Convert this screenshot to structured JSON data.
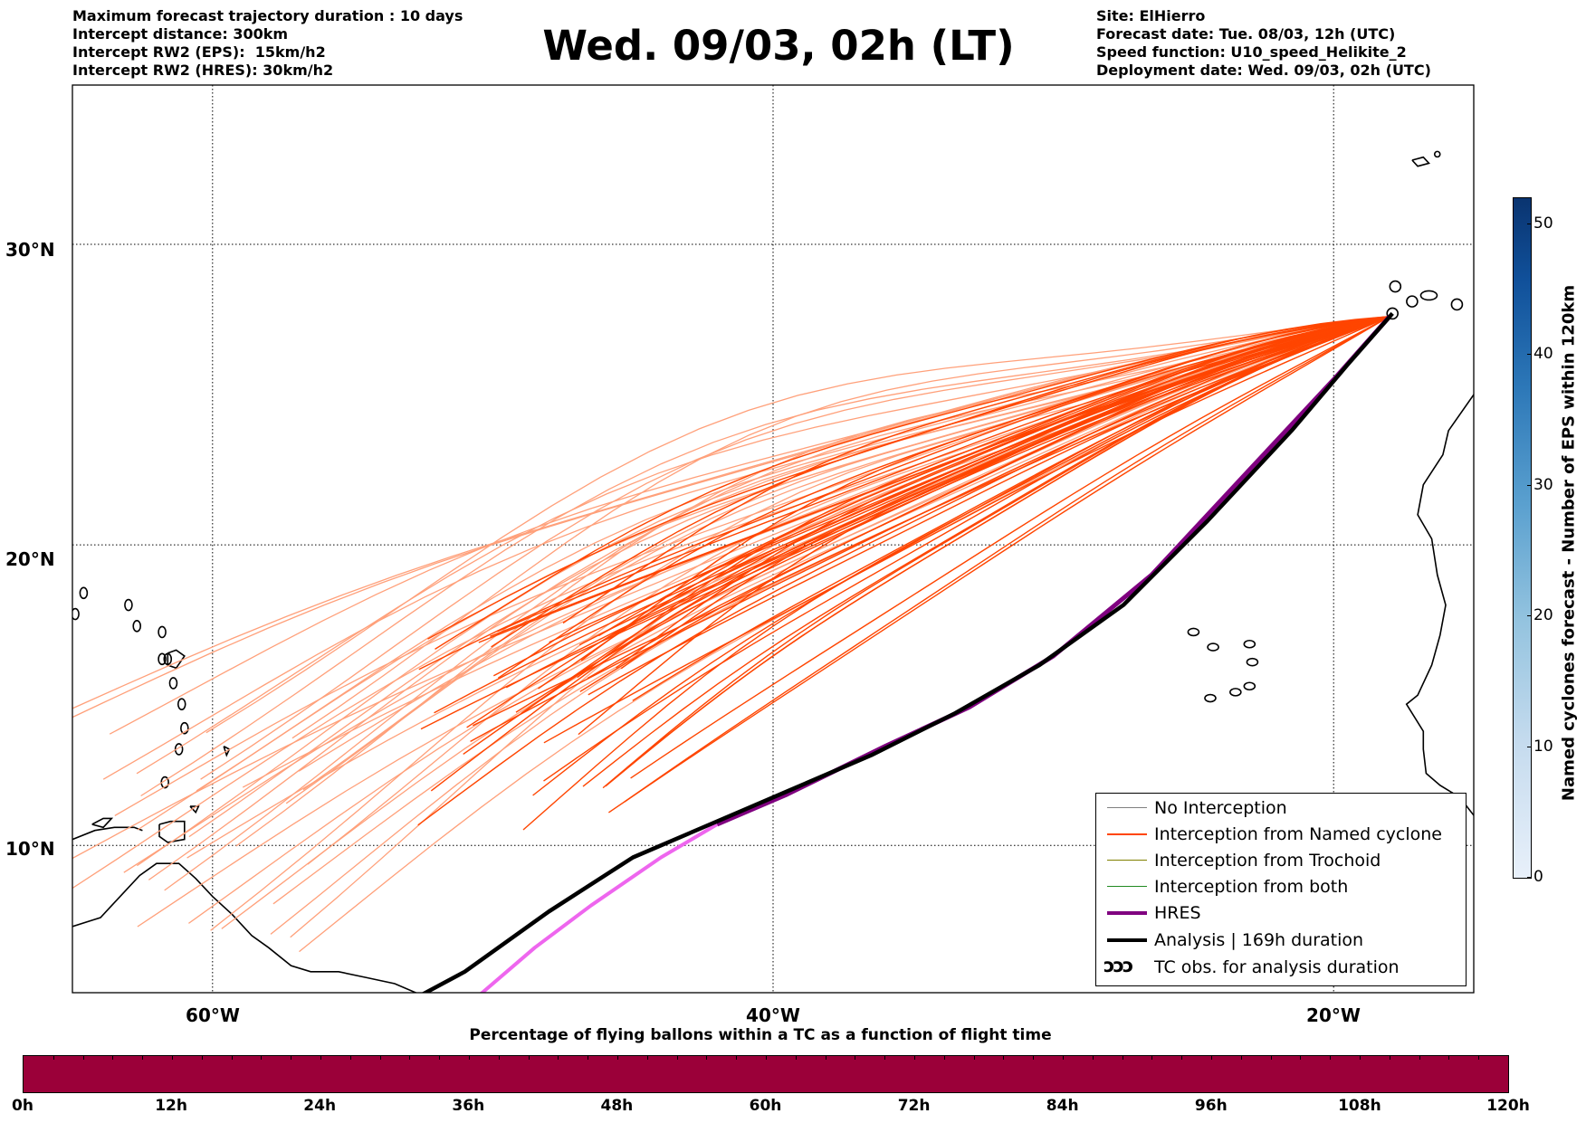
{
  "header": {
    "left_lines": [
      "Maximum forecast trajectory duration : 10 days",
      "Intercept distance: 300km",
      "Intercept RW2 (EPS):  15km/h2",
      "Intercept RW2 (HRES): 30km/h2"
    ],
    "title": "Wed. 09/03, 02h (LT)",
    "right_lines": [
      "Site: ElHierro",
      "Forecast date: Tue. 08/03, 12h (UTC)",
      "Speed function: U10_speed_Helikite_2",
      "Deployment date: Wed. 09/03, 02h (UTC)"
    ]
  },
  "map": {
    "lon_range": [
      -65,
      15
    ],
    "lat_range": [
      5,
      34
    ],
    "lat_labels": [
      "30°N",
      "20°N",
      "10°N"
    ],
    "lon_labels": [
      "60°W",
      "40°W",
      "20°W"
    ],
    "site": {
      "lon": -18.0,
      "lat": 27.7
    },
    "colors": {
      "eps_named_cyclone": "#ff4500",
      "eps_faded": "#ffa07a",
      "hres": "#800080",
      "hres_light": "#ee66ee",
      "analysis": "#000000",
      "coast": "#000000"
    }
  },
  "legend": {
    "items": [
      {
        "label": "No Interception",
        "color": "#808080",
        "width": 1
      },
      {
        "label": "Interception from Named cyclone",
        "color": "#ff4500",
        "width": 1.5
      },
      {
        "label": "Interception from Trochoid",
        "color": "#808000",
        "width": 1
      },
      {
        "label": "Interception from both",
        "color": "#228b22",
        "width": 1
      },
      {
        "label": "HRES",
        "color": "#800080",
        "width": 4
      },
      {
        "label": "Analysis | 169h duration",
        "color": "#000000",
        "width": 4
      },
      {
        "label": "TC obs. for analysis duration",
        "symbol": "ↄↄↄ"
      }
    ]
  },
  "colorbar_vertical": {
    "label": "Named cyclones forecast - Number of EPS within 120km",
    "ticks": [
      "0",
      "10",
      "20",
      "30",
      "40",
      "50"
    ],
    "range": [
      0,
      52
    ]
  },
  "colorbar_horizontal": {
    "title": "Percentage of flying ballons within a TC as a function of flight time",
    "ticks": [
      "0h",
      "12h",
      "24h",
      "36h",
      "48h",
      "60h",
      "72h",
      "84h",
      "96h",
      "108h",
      "120h"
    ],
    "color": "#9b0039"
  }
}
